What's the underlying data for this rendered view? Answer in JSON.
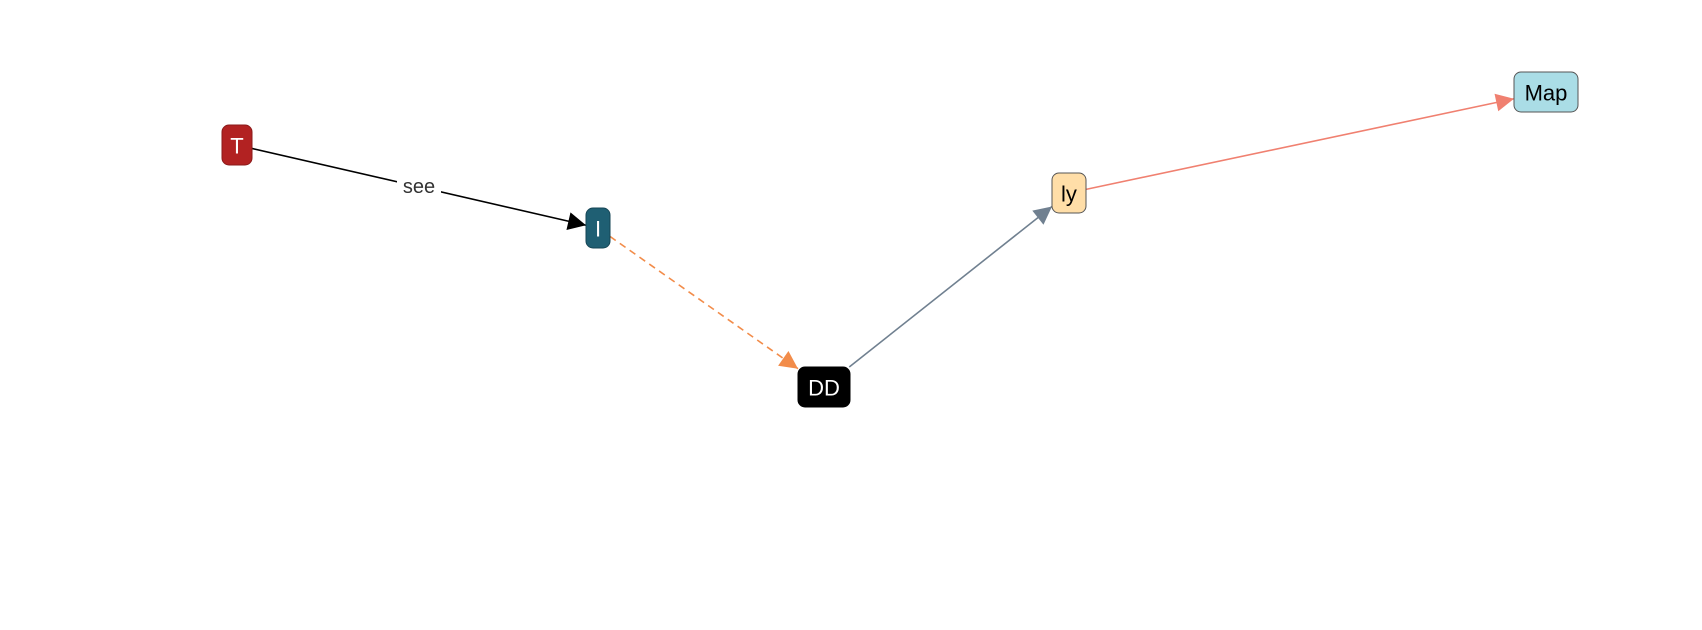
{
  "nodes": [
    {
      "id": "T",
      "label": "T",
      "fill": "#b22222",
      "text_color": "#ffffff",
      "stroke": "#8b1a1a"
    },
    {
      "id": "I",
      "label": "I",
      "fill": "#1f5f73",
      "text_color": "#ffffff",
      "stroke": "#164656"
    },
    {
      "id": "DD",
      "label": "DD",
      "fill": "#000000",
      "text_color": "#ffffff",
      "stroke": "#000000"
    },
    {
      "id": "ly",
      "label": "ly",
      "fill": "#ffdea8",
      "text_color": "#000000",
      "stroke": "#555555"
    },
    {
      "id": "Map",
      "label": "Map",
      "fill": "#aadde6",
      "text_color": "#000000",
      "stroke": "#555555"
    }
  ],
  "edges": [
    {
      "from": "T",
      "to": "I",
      "label": "see",
      "color": "#000000",
      "style": "solid"
    },
    {
      "from": "I",
      "to": "DD",
      "label": "",
      "color": "#f28c4a",
      "style": "dashed"
    },
    {
      "from": "DD",
      "to": "ly",
      "label": "",
      "color": "#708090",
      "style": "solid"
    },
    {
      "from": "ly",
      "to": "Map",
      "label": "",
      "color": "#f08070",
      "style": "solid"
    }
  ]
}
